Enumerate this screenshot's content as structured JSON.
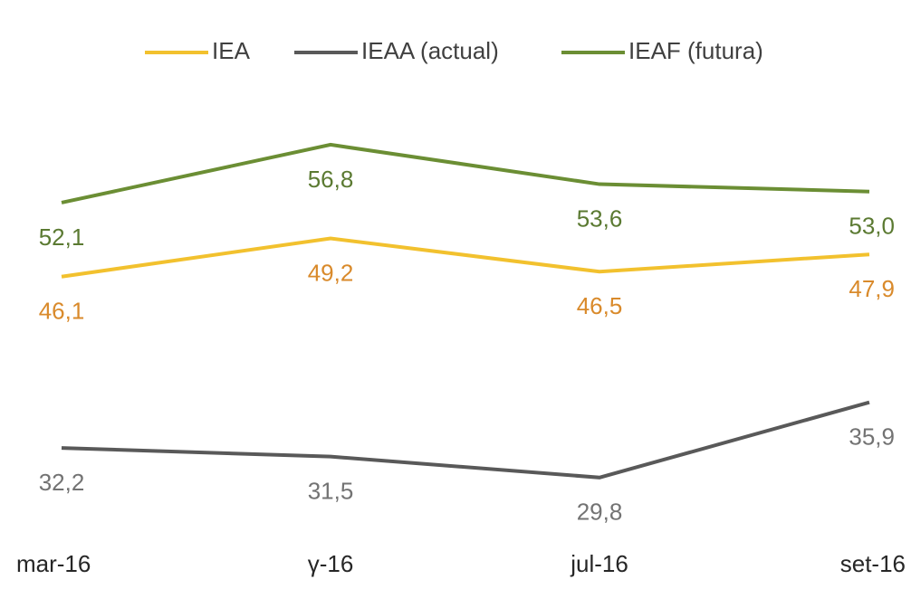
{
  "chart_data": {
    "type": "line",
    "categories": [
      "mar-16",
      "γ-16",
      "jul-16",
      "set-16"
    ],
    "ylim": [
      24.5,
      61.2
    ],
    "legend": "top",
    "series": [
      {
        "name": "IEA",
        "color": "#f2c12e",
        "label_color": "#d98a2b",
        "values": [
          46.1,
          49.2,
          46.5,
          47.9
        ],
        "value_labels": [
          "46,1",
          "49,2",
          "46,5",
          "47,9"
        ]
      },
      {
        "name": "IEAA (actual)",
        "color": "#595959",
        "label_color": "#737373",
        "values": [
          32.2,
          31.5,
          29.8,
          35.9
        ],
        "value_labels": [
          "32,2",
          "31,5",
          "29,8",
          "35,9"
        ]
      },
      {
        "name": "IEAF (futura)",
        "color": "#6b8e34",
        "label_color": "#5b7a32",
        "values": [
          52.1,
          56.8,
          53.6,
          53.0
        ],
        "value_labels": [
          "52,1",
          "56,8",
          "53,6",
          "53,0"
        ]
      }
    ]
  }
}
